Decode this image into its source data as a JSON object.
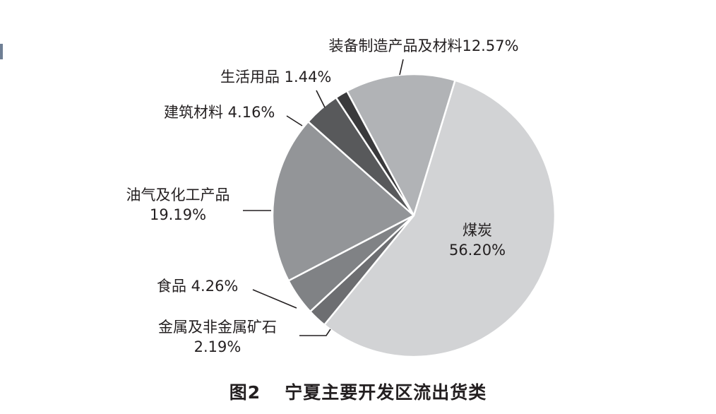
{
  "chart_data": {
    "type": "pie",
    "title": "图2　宁夏主要开发区流出货类",
    "figure_number": "图2",
    "figure_title": "宁夏主要开发区流出货类",
    "slices": [
      {
        "name": "煤炭",
        "value": 56.2,
        "pct_label": "56.20%",
        "color": "#d2d3d5"
      },
      {
        "name": "金属及非金属矿石",
        "value": 2.19,
        "pct_label": "2.19%",
        "color": "#6d6e71"
      },
      {
        "name": "食品",
        "value": 4.26,
        "pct_label": "4.26%",
        "color": "#808285"
      },
      {
        "name": "油气及化工产品",
        "value": 19.19,
        "pct_label": "19.19%",
        "color": "#939598"
      },
      {
        "name": "建筑材料",
        "value": 4.16,
        "pct_label": "4.16%",
        "color": "#58595b"
      },
      {
        "name": "生活用品",
        "value": 1.44,
        "pct_label": "1.44%",
        "color": "#3a3a3c"
      },
      {
        "name": "装备制造产品及材料",
        "value": 12.57,
        "pct_label": "12.57%",
        "color": "#b1b3b6"
      }
    ],
    "start_angle_deg": 17,
    "direction": "clockwise",
    "legend": "none"
  }
}
